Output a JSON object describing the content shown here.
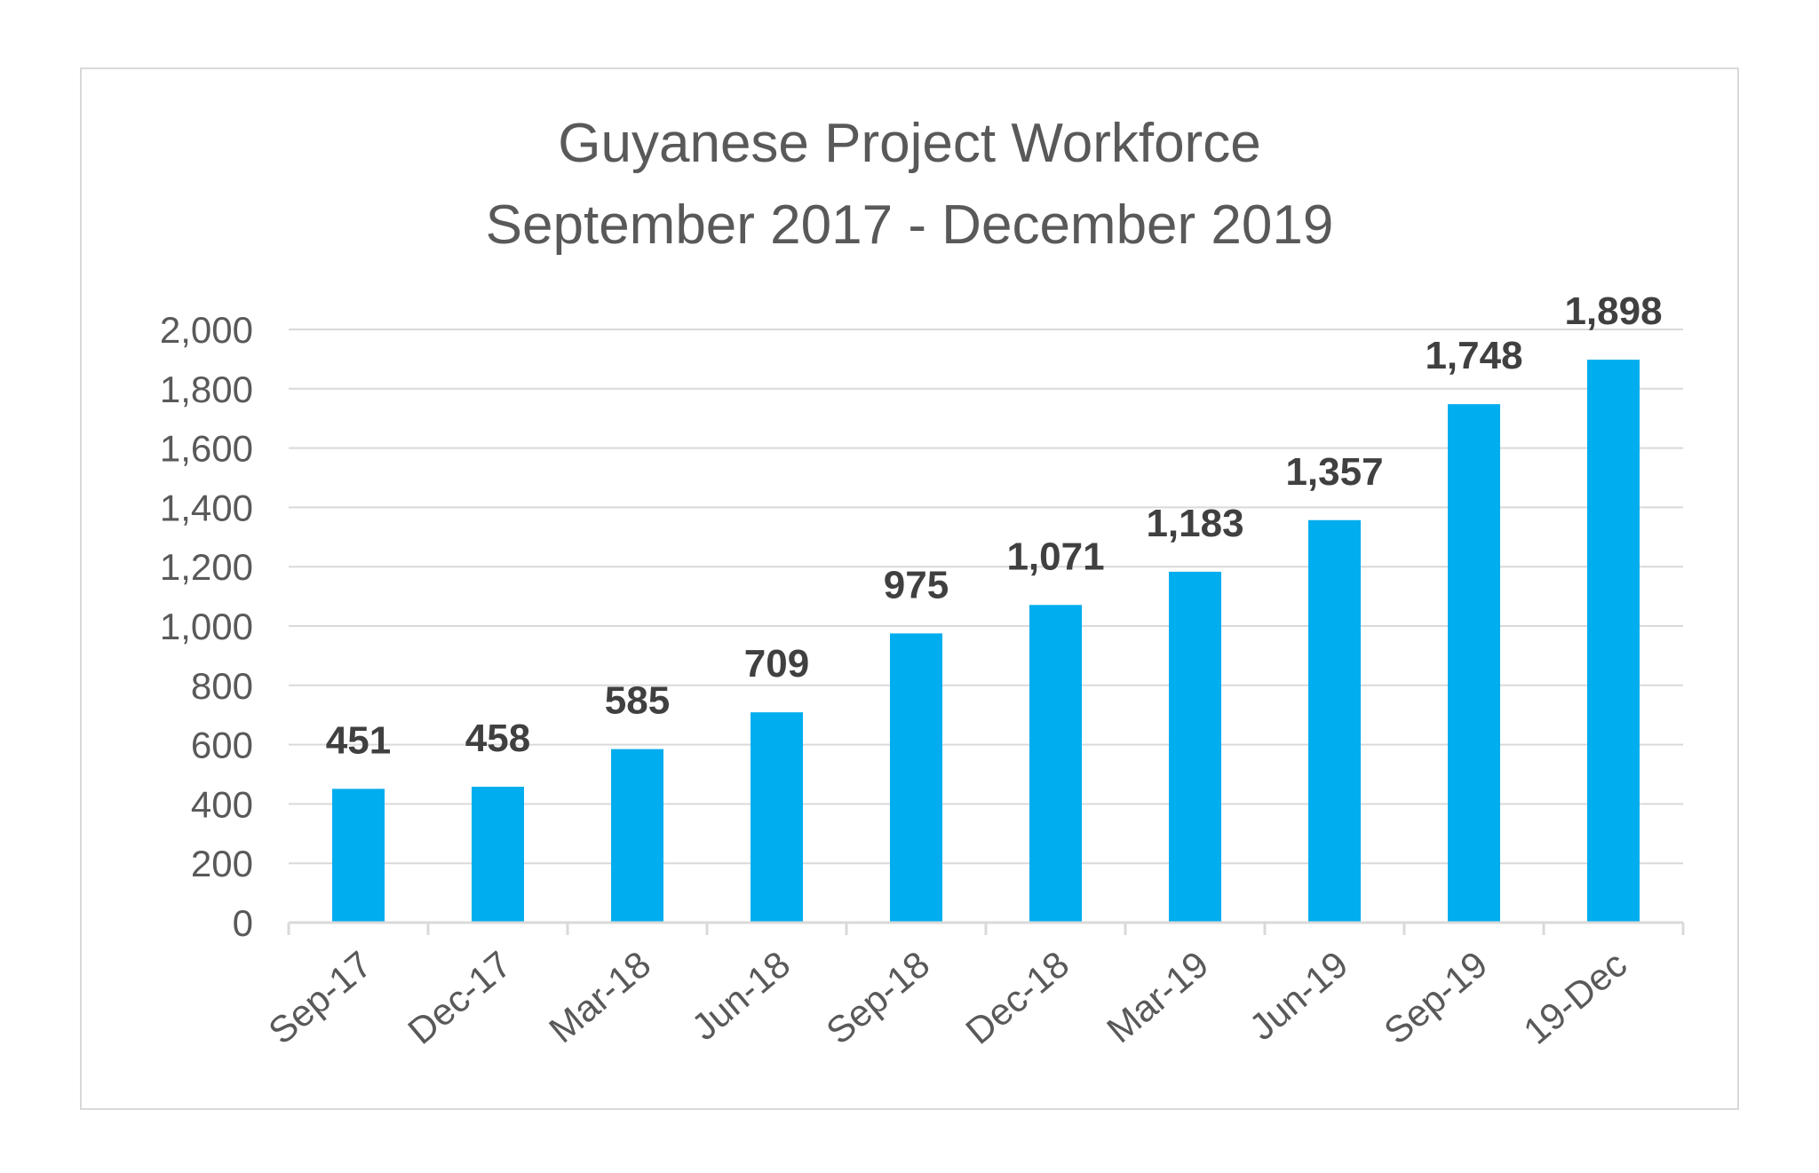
{
  "chart_data": {
    "type": "bar",
    "title": "Guyanese Project Workforce",
    "subtitle": "September 2017 - December 2019",
    "xlabel": "",
    "ylabel": "",
    "categories": [
      "Sep-17",
      "Dec-17",
      "Mar-18",
      "Jun-18",
      "Sep-18",
      "Dec-18",
      "Mar-19",
      "Jun-19",
      "Sep-19",
      "19-Dec"
    ],
    "values": [
      451,
      458,
      585,
      709,
      975,
      1071,
      1183,
      1357,
      1748,
      1898
    ],
    "value_labels": [
      "451",
      "458",
      "585",
      "709",
      "975",
      "1,071",
      "1,183",
      "1,357",
      "1,748",
      "1,898"
    ],
    "ylim": [
      0,
      2000
    ],
    "y_ticks": [
      0,
      200,
      400,
      600,
      800,
      1000,
      1200,
      1400,
      1600,
      1800,
      2000
    ],
    "y_tick_labels": [
      "0",
      "200",
      "400",
      "600",
      "800",
      "1,000",
      "1,200",
      "1,400",
      "1,600",
      "1,800",
      "2,000"
    ],
    "grid": true,
    "legend": "none",
    "bar_color": "#00ADEE",
    "grid_color": "#d9d9d9",
    "text_color": "#595959"
  }
}
